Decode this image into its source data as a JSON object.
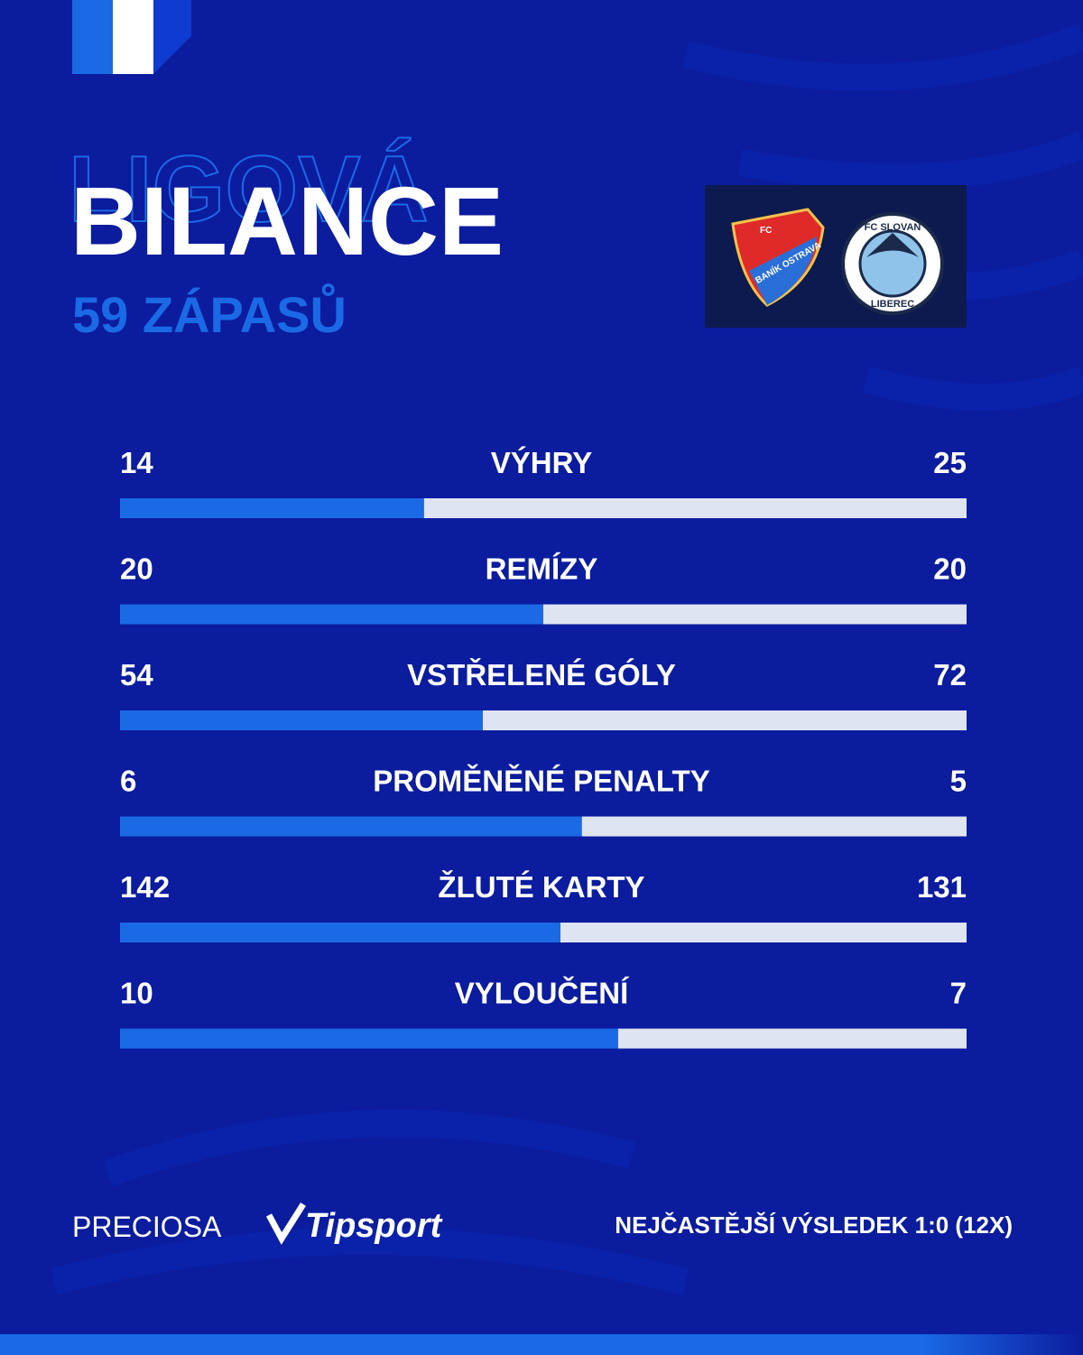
{
  "header": {
    "kicker": "LIGOVÁ",
    "title": "BILANCE",
    "subtitle": "59 ZÁPASŮ"
  },
  "logos": {
    "home": [
      "FC",
      "BANÍK OSTRAVA"
    ],
    "away": [
      "FC SLOVAN",
      "LIBEREC"
    ]
  },
  "colors": {
    "home": "#1a6ae6",
    "away": "#dfe4f2"
  },
  "stats": [
    {
      "label": "VÝHRY",
      "home": 14,
      "away": 25
    },
    {
      "label": "REMÍZY",
      "home": 20,
      "away": 20
    },
    {
      "label": "VSTŘELENÉ GÓLY",
      "home": 54,
      "away": 72
    },
    {
      "label": "PROMĚNĚNÉ PENALTY",
      "home": 6,
      "away": 5
    },
    {
      "label": "ŽLUTÉ KARTY",
      "home": 142,
      "away": 131
    },
    {
      "label": "VYLOUČENÍ",
      "home": 10,
      "away": 7
    }
  ],
  "footer": {
    "sponsors": [
      "PRECIOSA",
      "Tipsport"
    ],
    "note": "NEJČASTĚJŠÍ VÝSLEDEK 1:0 (12X)"
  }
}
